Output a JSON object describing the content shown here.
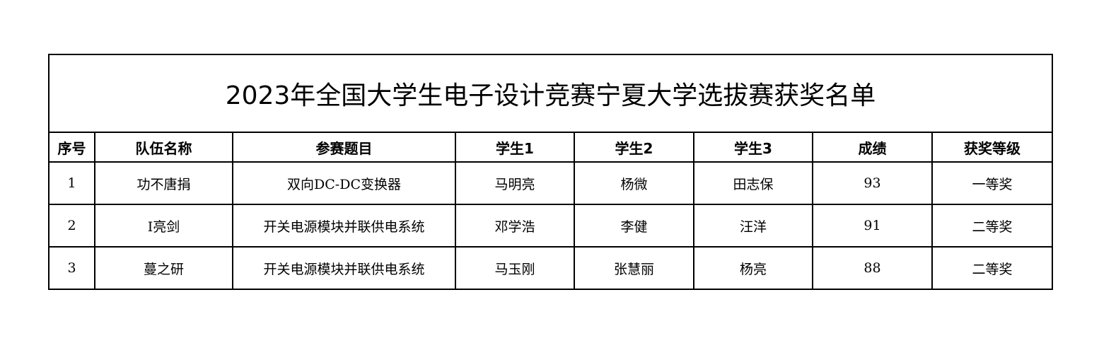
{
  "title": "2023年全国大学生电子设计竞赛宁夏大学选拔赛获奖名单",
  "headers": [
    "序号",
    "队伍名称",
    "参赛题目",
    "学生1",
    "学生2",
    "学生3",
    "成绩",
    "获奖等级"
  ],
  "rows": [
    [
      "1",
      "功不唐捐",
      "双向DC-DC变换器",
      "马明亮",
      "杨微",
      "田志保",
      "93",
      "一等奖"
    ],
    [
      "2",
      "I亮剑",
      "开关电源模块并联供电系统",
      "邓学浩",
      "李健",
      "汪洋",
      "91",
      "二等奖"
    ],
    [
      "3",
      "蔓之研",
      "开关电源模块并联供电系统",
      "马玉刚",
      "张慧丽",
      "杨亮",
      "88",
      "二等奖"
    ]
  ]
}
